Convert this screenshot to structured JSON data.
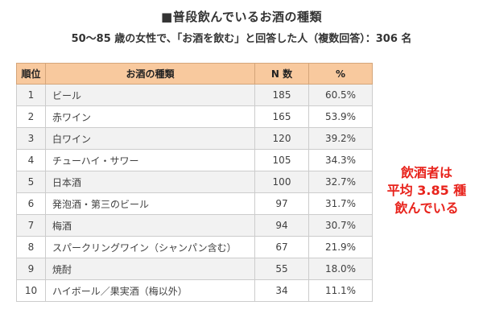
{
  "title": "■普段飲んでいるお酒の種類",
  "subtitle": "50～85 歳の女性で、「お酒を飲む」と回答した人（複数回答）：306 名",
  "table": {
    "headers": {
      "rank": "順位",
      "name": "お酒の種類",
      "n": "N 数",
      "pct": "%"
    },
    "rows": [
      {
        "rank": "1",
        "name": "ビール",
        "n": "185",
        "pct": "60.5%"
      },
      {
        "rank": "2",
        "name": "赤ワイン",
        "n": "165",
        "pct": "53.9%"
      },
      {
        "rank": "3",
        "name": "白ワイン",
        "n": "120",
        "pct": "39.2%"
      },
      {
        "rank": "4",
        "name": "チューハイ・サワー",
        "n": "105",
        "pct": "34.3%"
      },
      {
        "rank": "5",
        "name": "日本酒",
        "n": "100",
        "pct": "32.7%"
      },
      {
        "rank": "6",
        "name": "発泡酒・第三のビール",
        "n": "97",
        "pct": "31.7%"
      },
      {
        "rank": "7",
        "name": "梅酒",
        "n": "94",
        "pct": "30.7%"
      },
      {
        "rank": "8",
        "name": "スパークリングワイン（シャンパン含む）",
        "n": "67",
        "pct": "21.9%"
      },
      {
        "rank": "9",
        "name": "焼酎",
        "n": "55",
        "pct": "18.0%"
      },
      {
        "rank": "10",
        "name": "ハイボール／果実酒（梅以外）",
        "n": "34",
        "pct": "11.1%"
      }
    ]
  },
  "callout": {
    "line1": "飲酒者は",
    "line2": "平均 3.85 種",
    "line3": "飲んでいる"
  },
  "colors": {
    "header_bg": "#f8c99e",
    "callout_text": "#e8231c",
    "row_shade": "#f2f2f2"
  }
}
